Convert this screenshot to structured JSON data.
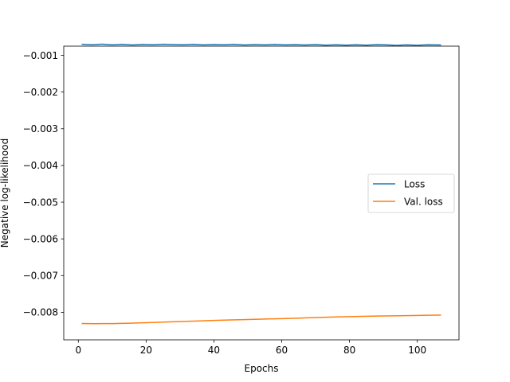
{
  "chart_data": {
    "type": "line",
    "xlabel": "Epochs",
    "ylabel": "Negative log-likelihood",
    "xlim": [
      -4.3,
      112.3
    ],
    "ylim": [
      -0.00875,
      -0.00075
    ],
    "xticks": [
      0,
      20,
      40,
      60,
      80,
      100
    ],
    "yticks": [
      -0.001,
      -0.002,
      -0.003,
      -0.004,
      -0.005,
      -0.006,
      -0.007,
      -0.008
    ],
    "xtick_labels": [
      "0",
      "20",
      "40",
      "60",
      "80",
      "100"
    ],
    "ytick_labels": [
      "−0.001",
      "−0.002",
      "−0.003",
      "−0.004",
      "−0.005",
      "−0.006",
      "−0.007",
      "−0.008"
    ],
    "grid": false,
    "legend_position": "center-right",
    "series": [
      {
        "name": "Loss",
        "color": "#1f77b4",
        "x": [
          1,
          4,
          7,
          10,
          13,
          16,
          19,
          22,
          25,
          28,
          31,
          34,
          37,
          40,
          43,
          46,
          49,
          52,
          55,
          58,
          61,
          64,
          67,
          70,
          73,
          76,
          79,
          82,
          85,
          88,
          91,
          94,
          97,
          100,
          103,
          107
        ],
        "y": [
          -0.000698,
          -0.000712,
          -0.000695,
          -0.000715,
          -0.0007,
          -0.000718,
          -0.000705,
          -0.000712,
          -0.000698,
          -0.000708,
          -0.000713,
          -0.000702,
          -0.000716,
          -0.000706,
          -0.000712,
          -0.0007,
          -0.000718,
          -0.000708,
          -0.000714,
          -0.000703,
          -0.000716,
          -0.000709,
          -0.000718,
          -0.000706,
          -0.000722,
          -0.000711,
          -0.000724,
          -0.000712,
          -0.000722,
          -0.000709,
          -0.000716,
          -0.000727,
          -0.000714,
          -0.000725,
          -0.000712,
          -0.000718
        ]
      },
      {
        "name": "Val. loss",
        "color": "#ff7f0e",
        "x": [
          1,
          5,
          10,
          15,
          20,
          25,
          30,
          35,
          40,
          45,
          50,
          55,
          60,
          65,
          70,
          75,
          80,
          85,
          90,
          95,
          100,
          107
        ],
        "y": [
          -0.008305,
          -0.00831,
          -0.008307,
          -0.008297,
          -0.008283,
          -0.008268,
          -0.008252,
          -0.008237,
          -0.008222,
          -0.008208,
          -0.008196,
          -0.008184,
          -0.008172,
          -0.008158,
          -0.008144,
          -0.00813,
          -0.008118,
          -0.008108,
          -0.0081,
          -0.008093,
          -0.008085,
          -0.008075
        ]
      }
    ]
  }
}
